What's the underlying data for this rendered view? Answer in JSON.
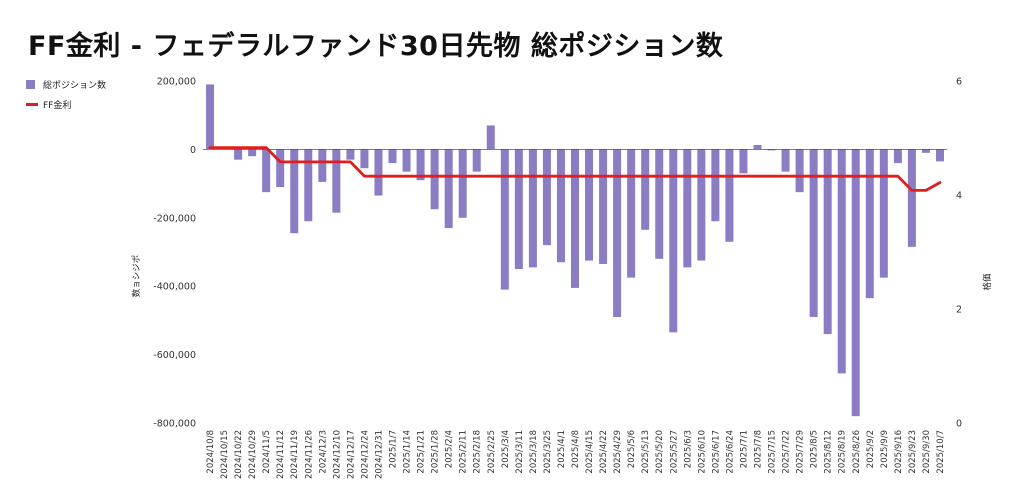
{
  "chart_data": {
    "type": "bar+line",
    "title": "FF金利 - フェデラルファンド30日先物 総ポジション数",
    "ylabel_left": "数ョシジポ",
    "ylabel_right": "格価",
    "y_left_ticks": [
      "200,000",
      "0",
      "-200,000",
      "-400,000",
      "-600,000",
      "-800,000"
    ],
    "y_right_ticks": [
      "6",
      "4",
      "2",
      "0"
    ],
    "ylim_left": [
      -800000,
      200000
    ],
    "ylim_right": [
      0,
      6
    ],
    "legend": [
      {
        "label": "総ポジション数",
        "kind": "bar",
        "color": "#8b7cc4"
      },
      {
        "label": "FF金利",
        "kind": "line",
        "color": "#e31c1c"
      }
    ],
    "categories": [
      "2024/10/8",
      "2024/10/15",
      "2024/10/22",
      "2024/10/29",
      "2024/11/5",
      "2024/11/12",
      "2024/11/19",
      "2024/11/26",
      "2024/12/3",
      "2024/12/10",
      "2024/12/17",
      "2024/12/24",
      "2024/12/31",
      "2025/1/7",
      "2025/1/14",
      "2025/1/21",
      "2025/1/28",
      "2025/2/4",
      "2025/2/11",
      "2025/2/18",
      "2025/2/25",
      "2025/3/4",
      "2025/3/11",
      "2025/3/18",
      "2025/3/25",
      "2025/4/1",
      "2025/4/8",
      "2025/4/15",
      "2025/4/22",
      "2025/4/29",
      "2025/5/6",
      "2025/5/13",
      "2025/5/20",
      "2025/5/27",
      "2025/6/3",
      "2025/6/10",
      "2025/6/17",
      "2025/6/24",
      "2025/7/1",
      "2025/7/8",
      "2025/7/15",
      "2025/7/22",
      "2025/7/29",
      "2025/8/5",
      "2025/8/12",
      "2025/8/19",
      "2025/8/26",
      "2025/9/2",
      "2025/9/9",
      "2025/9/16",
      "2025/9/23",
      "2025/9/30",
      "2025/10/7"
    ],
    "series": [
      {
        "name": "総ポジション数",
        "type": "bar",
        "axis": "left",
        "values": [
          190000,
          3000,
          -30000,
          -20000,
          -125000,
          -110000,
          -245000,
          -210000,
          -95000,
          -185000,
          -30000,
          -55000,
          -135000,
          -40000,
          -65000,
          -90000,
          -175000,
          -230000,
          -200000,
          -65000,
          70000,
          -410000,
          -350000,
          -345000,
          -280000,
          -330000,
          -405000,
          -325000,
          -335000,
          -490000,
          -375000,
          -235000,
          -320000,
          -535000,
          -345000,
          -325000,
          -210000,
          -270000,
          -70000,
          13000,
          -3000,
          -65000,
          -125000,
          -490000,
          -540000,
          -655000,
          -780000,
          -435000,
          -375000,
          -40000,
          -285000,
          -10000,
          -35000
        ]
      },
      {
        "name": "FF金利",
        "type": "line",
        "axis": "right",
        "values": [
          4.83,
          4.83,
          4.83,
          4.83,
          4.83,
          4.58,
          4.58,
          4.58,
          4.58,
          4.58,
          4.58,
          4.33,
          4.33,
          4.33,
          4.33,
          4.33,
          4.33,
          4.33,
          4.33,
          4.33,
          4.33,
          4.33,
          4.33,
          4.33,
          4.33,
          4.33,
          4.33,
          4.33,
          4.33,
          4.33,
          4.33,
          4.33,
          4.33,
          4.33,
          4.33,
          4.33,
          4.33,
          4.33,
          4.33,
          4.33,
          4.33,
          4.33,
          4.33,
          4.33,
          4.33,
          4.33,
          4.33,
          4.33,
          4.33,
          4.33,
          4.08,
          4.08,
          4.22
        ]
      }
    ]
  }
}
